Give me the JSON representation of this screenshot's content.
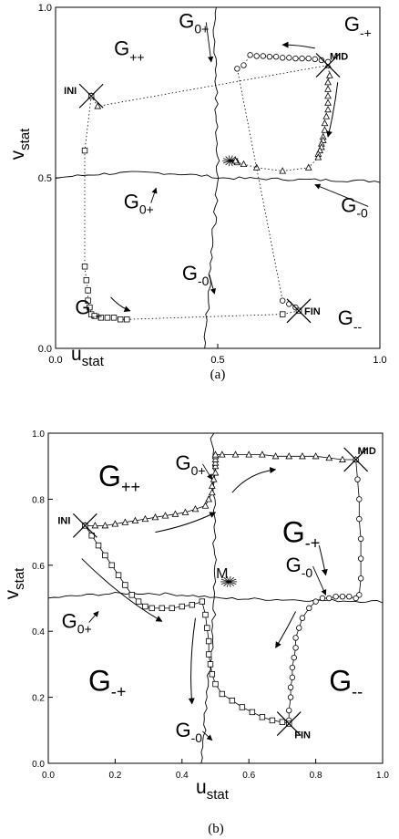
{
  "chart_data": [
    {
      "type": "scatter",
      "panel": "a",
      "caption": "(a)",
      "xlabel": "u",
      "xlabel_sub": "stat",
      "ylabel": "v",
      "ylabel_sub": "stat",
      "xlim": [
        0,
        1
      ],
      "ylim": [
        0,
        1
      ],
      "x_ticks": [
        "0.0",
        "0.5",
        "1.0"
      ],
      "y_ticks": [
        "0.0",
        "0.5",
        "1.0"
      ],
      "regions": [
        {
          "main": "G",
          "sub": "++",
          "x": 0.18,
          "y": 0.86
        },
        {
          "main": "G",
          "sub": "-+",
          "x": 0.89,
          "y": 0.93
        },
        {
          "main": "G",
          "sub": "-+",
          "x": 0.06,
          "y": 0.1
        },
        {
          "main": "G",
          "sub": "--",
          "x": 0.87,
          "y": 0.07
        }
      ],
      "curve_labels": [
        {
          "main": "G",
          "sub": "0+",
          "x": 0.38,
          "y": 0.94,
          "ax": 0.48,
          "ay": 0.84
        },
        {
          "main": "G",
          "sub": "0+",
          "x": 0.21,
          "y": 0.41,
          "ax": 0.31,
          "ay": 0.47
        },
        {
          "main": "G",
          "sub": "-0",
          "x": 0.88,
          "y": 0.4,
          "ax": 0.8,
          "ay": 0.48
        },
        {
          "main": "G",
          "sub": "-0",
          "x": 0.39,
          "y": 0.2,
          "ax": 0.49,
          "ay": 0.16
        }
      ],
      "markers": [
        {
          "label": "INI",
          "x": 0.11,
          "y": 0.74
        },
        {
          "label": "MID",
          "x": 0.84,
          "y": 0.83
        },
        {
          "label": "FIN",
          "x": 0.75,
          "y": 0.11
        }
      ],
      "series": [
        {
          "marker": "triangle",
          "x": [
            0.11,
            0.13,
            0.84,
            0.845,
            0.84,
            0.84,
            0.84,
            0.84,
            0.84,
            0.835,
            0.83,
            0.83,
            0.825,
            0.825,
            0.82,
            0.82,
            0.815,
            0.81,
            0.81,
            0.78,
            0.7,
            0.62,
            0.58,
            0.56,
            0.555
          ],
          "y": [
            0.74,
            0.71,
            0.83,
            0.8,
            0.78,
            0.76,
            0.74,
            0.72,
            0.7,
            0.68,
            0.66,
            0.64,
            0.62,
            0.61,
            0.6,
            0.59,
            0.58,
            0.57,
            0.56,
            0.53,
            0.52,
            0.53,
            0.54,
            0.545,
            0.55
          ]
        },
        {
          "marker": "circle",
          "x": [
            0.84,
            0.82,
            0.8,
            0.78,
            0.76,
            0.74,
            0.72,
            0.7,
            0.68,
            0.66,
            0.64,
            0.62,
            0.6,
            0.58,
            0.56,
            0.7,
            0.72,
            0.74,
            0.75
          ],
          "y": [
            0.84,
            0.845,
            0.848,
            0.85,
            0.85,
            0.85,
            0.852,
            0.852,
            0.855,
            0.855,
            0.857,
            0.857,
            0.86,
            0.83,
            0.82,
            0.14,
            0.13,
            0.12,
            0.11
          ]
        },
        {
          "marker": "square",
          "x": [
            0.11,
            0.09,
            0.09,
            0.095,
            0.1,
            0.1,
            0.105,
            0.11,
            0.12,
            0.14,
            0.16,
            0.18,
            0.2,
            0.22,
            0.7,
            0.75
          ],
          "y": [
            0.74,
            0.58,
            0.24,
            0.2,
            0.17,
            0.14,
            0.12,
            0.1,
            0.095,
            0.09,
            0.09,
            0.09,
            0.085,
            0.085,
            0.1,
            0.11
          ]
        }
      ],
      "flows": [
        {
          "x": [
            0.17,
            0.2,
            0.23
          ],
          "y": [
            0.15,
            0.12,
            0.11
          ]
        },
        {
          "x": [
            0.8,
            0.75,
            0.7
          ],
          "y": [
            0.88,
            0.89,
            0.89
          ]
        },
        {
          "x": [
            0.87,
            0.86,
            0.84
          ],
          "y": [
            0.78,
            0.7,
            0.62
          ]
        }
      ]
    },
    {
      "type": "scatter",
      "panel": "b",
      "caption": "(b)",
      "xlabel": "u",
      "xlabel_sub": "stat",
      "ylabel": "v",
      "ylabel_sub": "stat",
      "xlim": [
        0,
        1
      ],
      "ylim": [
        0,
        1
      ],
      "x_ticks": [
        "0.0",
        "0.2",
        "0.4",
        "0.6",
        "0.8",
        "1.0"
      ],
      "y_ticks": [
        "0.0",
        "0.2",
        "0.4",
        "0.6",
        "0.8",
        "1.0"
      ],
      "regions": [
        {
          "main": "G",
          "sub": "++",
          "x": 0.15,
          "y": 0.84
        },
        {
          "main": "G",
          "sub": "-+",
          "x": 0.7,
          "y": 0.67
        },
        {
          "main": "G",
          "sub": "-+",
          "x": 0.12,
          "y": 0.22
        },
        {
          "main": "G",
          "sub": "--",
          "x": 0.84,
          "y": 0.22
        }
      ],
      "curve_labels": [
        {
          "main": "G",
          "sub": "0+",
          "x": 0.38,
          "y": 0.89,
          "ax": 0.49,
          "ay": 0.86
        },
        {
          "main": "G",
          "sub": "-0",
          "x": 0.71,
          "y": 0.58,
          "ax": 0.83,
          "ay": 0.51
        },
        {
          "main": "G",
          "sub": "0+",
          "x": 0.04,
          "y": 0.41,
          "ax": 0.15,
          "ay": 0.46
        },
        {
          "main": "G",
          "sub": "-0",
          "x": 0.38,
          "y": 0.08,
          "ax": 0.49,
          "ay": 0.07
        }
      ],
      "markers": [
        {
          "label": "INI",
          "x": 0.11,
          "y": 0.72
        },
        {
          "label": "MID",
          "x": 0.92,
          "y": 0.92
        },
        {
          "label": "FIN",
          "x": 0.72,
          "y": 0.12
        },
        {
          "label": "M",
          "x": 0.54,
          "y": 0.55
        }
      ],
      "series": [
        {
          "marker": "triangle",
          "x": [
            0.11,
            0.14,
            0.17,
            0.2,
            0.23,
            0.26,
            0.29,
            0.32,
            0.35,
            0.38,
            0.41,
            0.44,
            0.47,
            0.48,
            0.49,
            0.49,
            0.495,
            0.5,
            0.5,
            0.5,
            0.5,
            0.5,
            0.5,
            0.52,
            0.56,
            0.6,
            0.64,
            0.68,
            0.72,
            0.76,
            0.8,
            0.84,
            0.88,
            0.92
          ],
          "y": [
            0.72,
            0.72,
            0.72,
            0.725,
            0.73,
            0.735,
            0.74,
            0.745,
            0.75,
            0.755,
            0.76,
            0.77,
            0.78,
            0.8,
            0.82,
            0.84,
            0.86,
            0.88,
            0.9,
            0.91,
            0.92,
            0.93,
            0.935,
            0.935,
            0.935,
            0.935,
            0.935,
            0.93,
            0.93,
            0.93,
            0.93,
            0.925,
            0.92,
            0.92
          ]
        },
        {
          "marker": "circle",
          "x": [
            0.92,
            0.925,
            0.93,
            0.93,
            0.935,
            0.935,
            0.935,
            0.93,
            0.92,
            0.9,
            0.88,
            0.86,
            0.84,
            0.82,
            0.8,
            0.78,
            0.76,
            0.75,
            0.74,
            0.74,
            0.735,
            0.73,
            0.73,
            0.725,
            0.725,
            0.72,
            0.72
          ],
          "y": [
            0.92,
            0.86,
            0.8,
            0.74,
            0.68,
            0.62,
            0.56,
            0.51,
            0.5,
            0.505,
            0.505,
            0.505,
            0.5,
            0.5,
            0.49,
            0.47,
            0.44,
            0.41,
            0.38,
            0.35,
            0.32,
            0.29,
            0.26,
            0.23,
            0.2,
            0.16,
            0.13
          ]
        },
        {
          "marker": "square",
          "x": [
            0.11,
            0.13,
            0.15,
            0.17,
            0.19,
            0.21,
            0.23,
            0.25,
            0.27,
            0.29,
            0.31,
            0.34,
            0.37,
            0.4,
            0.43,
            0.46,
            0.47,
            0.475,
            0.48,
            0.48,
            0.485,
            0.49,
            0.5,
            0.52,
            0.55,
            0.58,
            0.61,
            0.64,
            0.67,
            0.7,
            0.72
          ],
          "y": [
            0.72,
            0.69,
            0.66,
            0.63,
            0.6,
            0.57,
            0.54,
            0.51,
            0.49,
            0.475,
            0.47,
            0.47,
            0.47,
            0.475,
            0.48,
            0.49,
            0.45,
            0.41,
            0.37,
            0.33,
            0.3,
            0.27,
            0.24,
            0.21,
            0.19,
            0.17,
            0.155,
            0.14,
            0.13,
            0.125,
            0.12
          ]
        }
      ],
      "flows": [
        {
          "x": [
            0.1,
            0.22,
            0.34
          ],
          "y": [
            0.62,
            0.5,
            0.43
          ]
        },
        {
          "x": [
            0.32,
            0.42,
            0.5
          ],
          "y": [
            0.7,
            0.72,
            0.76
          ]
        },
        {
          "x": [
            0.55,
            0.6,
            0.68
          ],
          "y": [
            0.82,
            0.88,
            0.89
          ]
        },
        {
          "x": [
            0.44,
            0.42,
            0.43
          ],
          "y": [
            0.44,
            0.3,
            0.18
          ]
        },
        {
          "x": [
            0.81,
            0.82,
            0.83
          ],
          "y": [
            0.66,
            0.62,
            0.57
          ]
        },
        {
          "x": [
            0.74,
            0.71,
            0.68
          ],
          "y": [
            0.46,
            0.4,
            0.35
          ]
        }
      ]
    }
  ]
}
